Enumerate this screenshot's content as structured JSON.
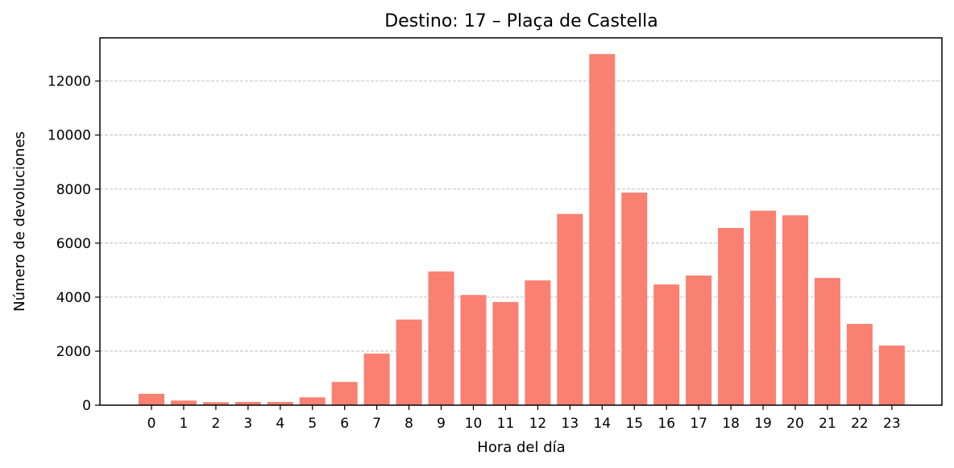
{
  "chart_data": {
    "type": "bar",
    "title": "Destino: 17 – Plaça de Castella",
    "xlabel": "Hora del día",
    "ylabel": "Número de devoluciones",
    "categories": [
      "0",
      "1",
      "2",
      "3",
      "4",
      "5",
      "6",
      "7",
      "8",
      "9",
      "10",
      "11",
      "12",
      "13",
      "14",
      "15",
      "16",
      "17",
      "18",
      "19",
      "20",
      "21",
      "22",
      "23"
    ],
    "values": [
      420,
      170,
      110,
      120,
      120,
      290,
      860,
      1910,
      3170,
      4950,
      4080,
      3820,
      4620,
      7080,
      13000,
      7870,
      4470,
      4800,
      6560,
      7200,
      7030,
      4710,
      3010,
      2210
    ],
    "ylim": [
      0,
      13600
    ],
    "yticks": [
      0,
      2000,
      4000,
      6000,
      8000,
      10000,
      12000
    ],
    "grid": "y, dashed",
    "bar_color": "#fa8072"
  }
}
